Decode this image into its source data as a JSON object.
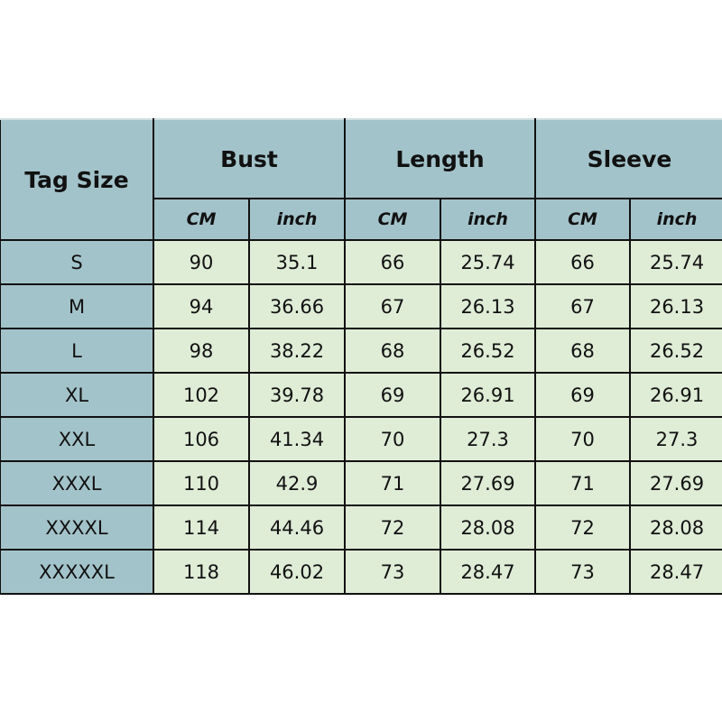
{
  "header": {
    "tag_size": "Tag Size",
    "groups": [
      "Bust",
      "Length",
      "Sleeve"
    ],
    "units": [
      "CM",
      "inch",
      "CM",
      "inch",
      "CM",
      "inch"
    ]
  },
  "colors": {
    "header_bg": "#a3c3ca",
    "cell_bg": "#dfecd6",
    "border": "#111111"
  },
  "rows": [
    {
      "size": "S",
      "values": [
        "90",
        "35.1",
        "66",
        "25.74",
        "66",
        "25.74"
      ]
    },
    {
      "size": "M",
      "values": [
        "94",
        "36.66",
        "67",
        "26.13",
        "67",
        "26.13"
      ]
    },
    {
      "size": "L",
      "values": [
        "98",
        "38.22",
        "68",
        "26.52",
        "68",
        "26.52"
      ]
    },
    {
      "size": "XL",
      "values": [
        "102",
        "39.78",
        "69",
        "26.91",
        "69",
        "26.91"
      ]
    },
    {
      "size": "XXL",
      "values": [
        "106",
        "41.34",
        "70",
        "27.3",
        "70",
        "27.3"
      ]
    },
    {
      "size": "XXXL",
      "values": [
        "110",
        "42.9",
        "71",
        "27.69",
        "71",
        "27.69"
      ]
    },
    {
      "size": "XXXXL",
      "values": [
        "114",
        "44.46",
        "72",
        "28.08",
        "72",
        "28.08"
      ]
    },
    {
      "size": "XXXXXL",
      "values": [
        "118",
        "46.02",
        "73",
        "28.47",
        "73",
        "28.47"
      ]
    }
  ]
}
